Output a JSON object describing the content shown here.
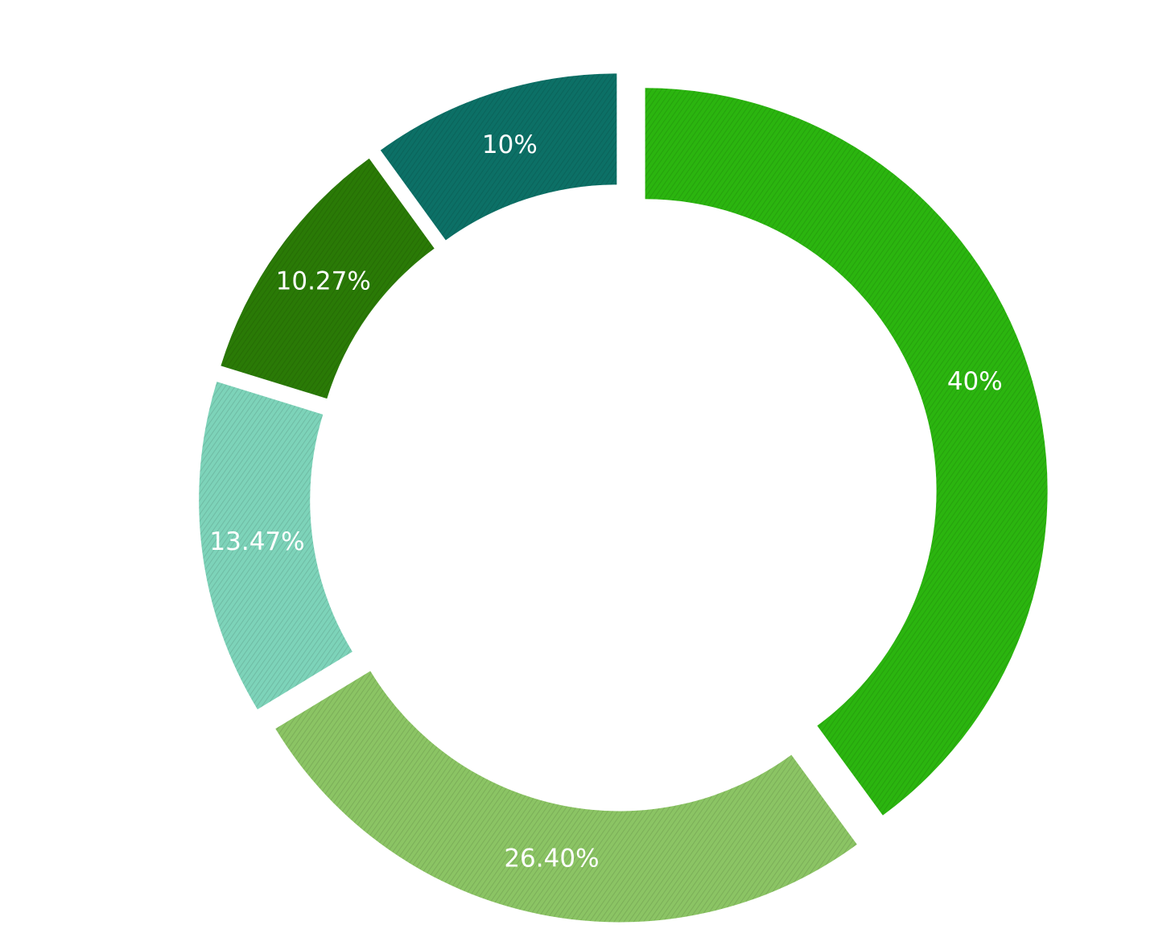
{
  "chart_data": {
    "type": "pie",
    "donut": true,
    "exploded": true,
    "title": "",
    "slices": [
      {
        "value": 40,
        "label": "40%",
        "color": "#2bb50f"
      },
      {
        "value": 26.4,
        "label": "26.40%",
        "color": "#8bc464"
      },
      {
        "value": 13.47,
        "label": "13.47%",
        "color": "#7dd3b9"
      },
      {
        "value": 10.27,
        "label": "10.27%",
        "color": "#2a7a06"
      },
      {
        "value": 10,
        "label": "10%",
        "color": "#0c7066"
      }
    ]
  }
}
